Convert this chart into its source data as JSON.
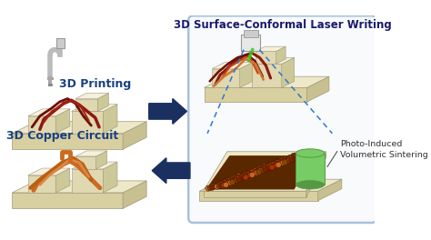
{
  "bg_color": "#ffffff",
  "label_printing": "3D Printing",
  "label_laser": "3D Surface-Conformal Laser Writing",
  "label_copper": "3D Copper Circuit",
  "label_sintering": "Photo-Induced\nVolumetric Sintering",
  "arrow_color": "#1a3060",
  "box_border_color": "#5588bb",
  "beige_top": "#ede8c8",
  "beige_front": "#d8d0a0",
  "beige_side": "#c8c090",
  "block_top": "#f5f0dc",
  "block_front": "#e0d8b0",
  "block_side": "#ccc898",
  "dark_red": "#8b1a10",
  "copper": "#cc6a20",
  "green_light": "#77cc66",
  "green_dark": "#559944",
  "label_color_blue": "#1a4080",
  "label_color_laser": "#1a1a6a",
  "nozzle_color": "#999999",
  "wire_red_dark": "#7a1510",
  "wire_red_med": "#aa2010",
  "sinter_color1": "#aa3300",
  "sinter_color2": "#cc6622",
  "sinter_color3": "#884400",
  "sinter_color4": "#772200"
}
